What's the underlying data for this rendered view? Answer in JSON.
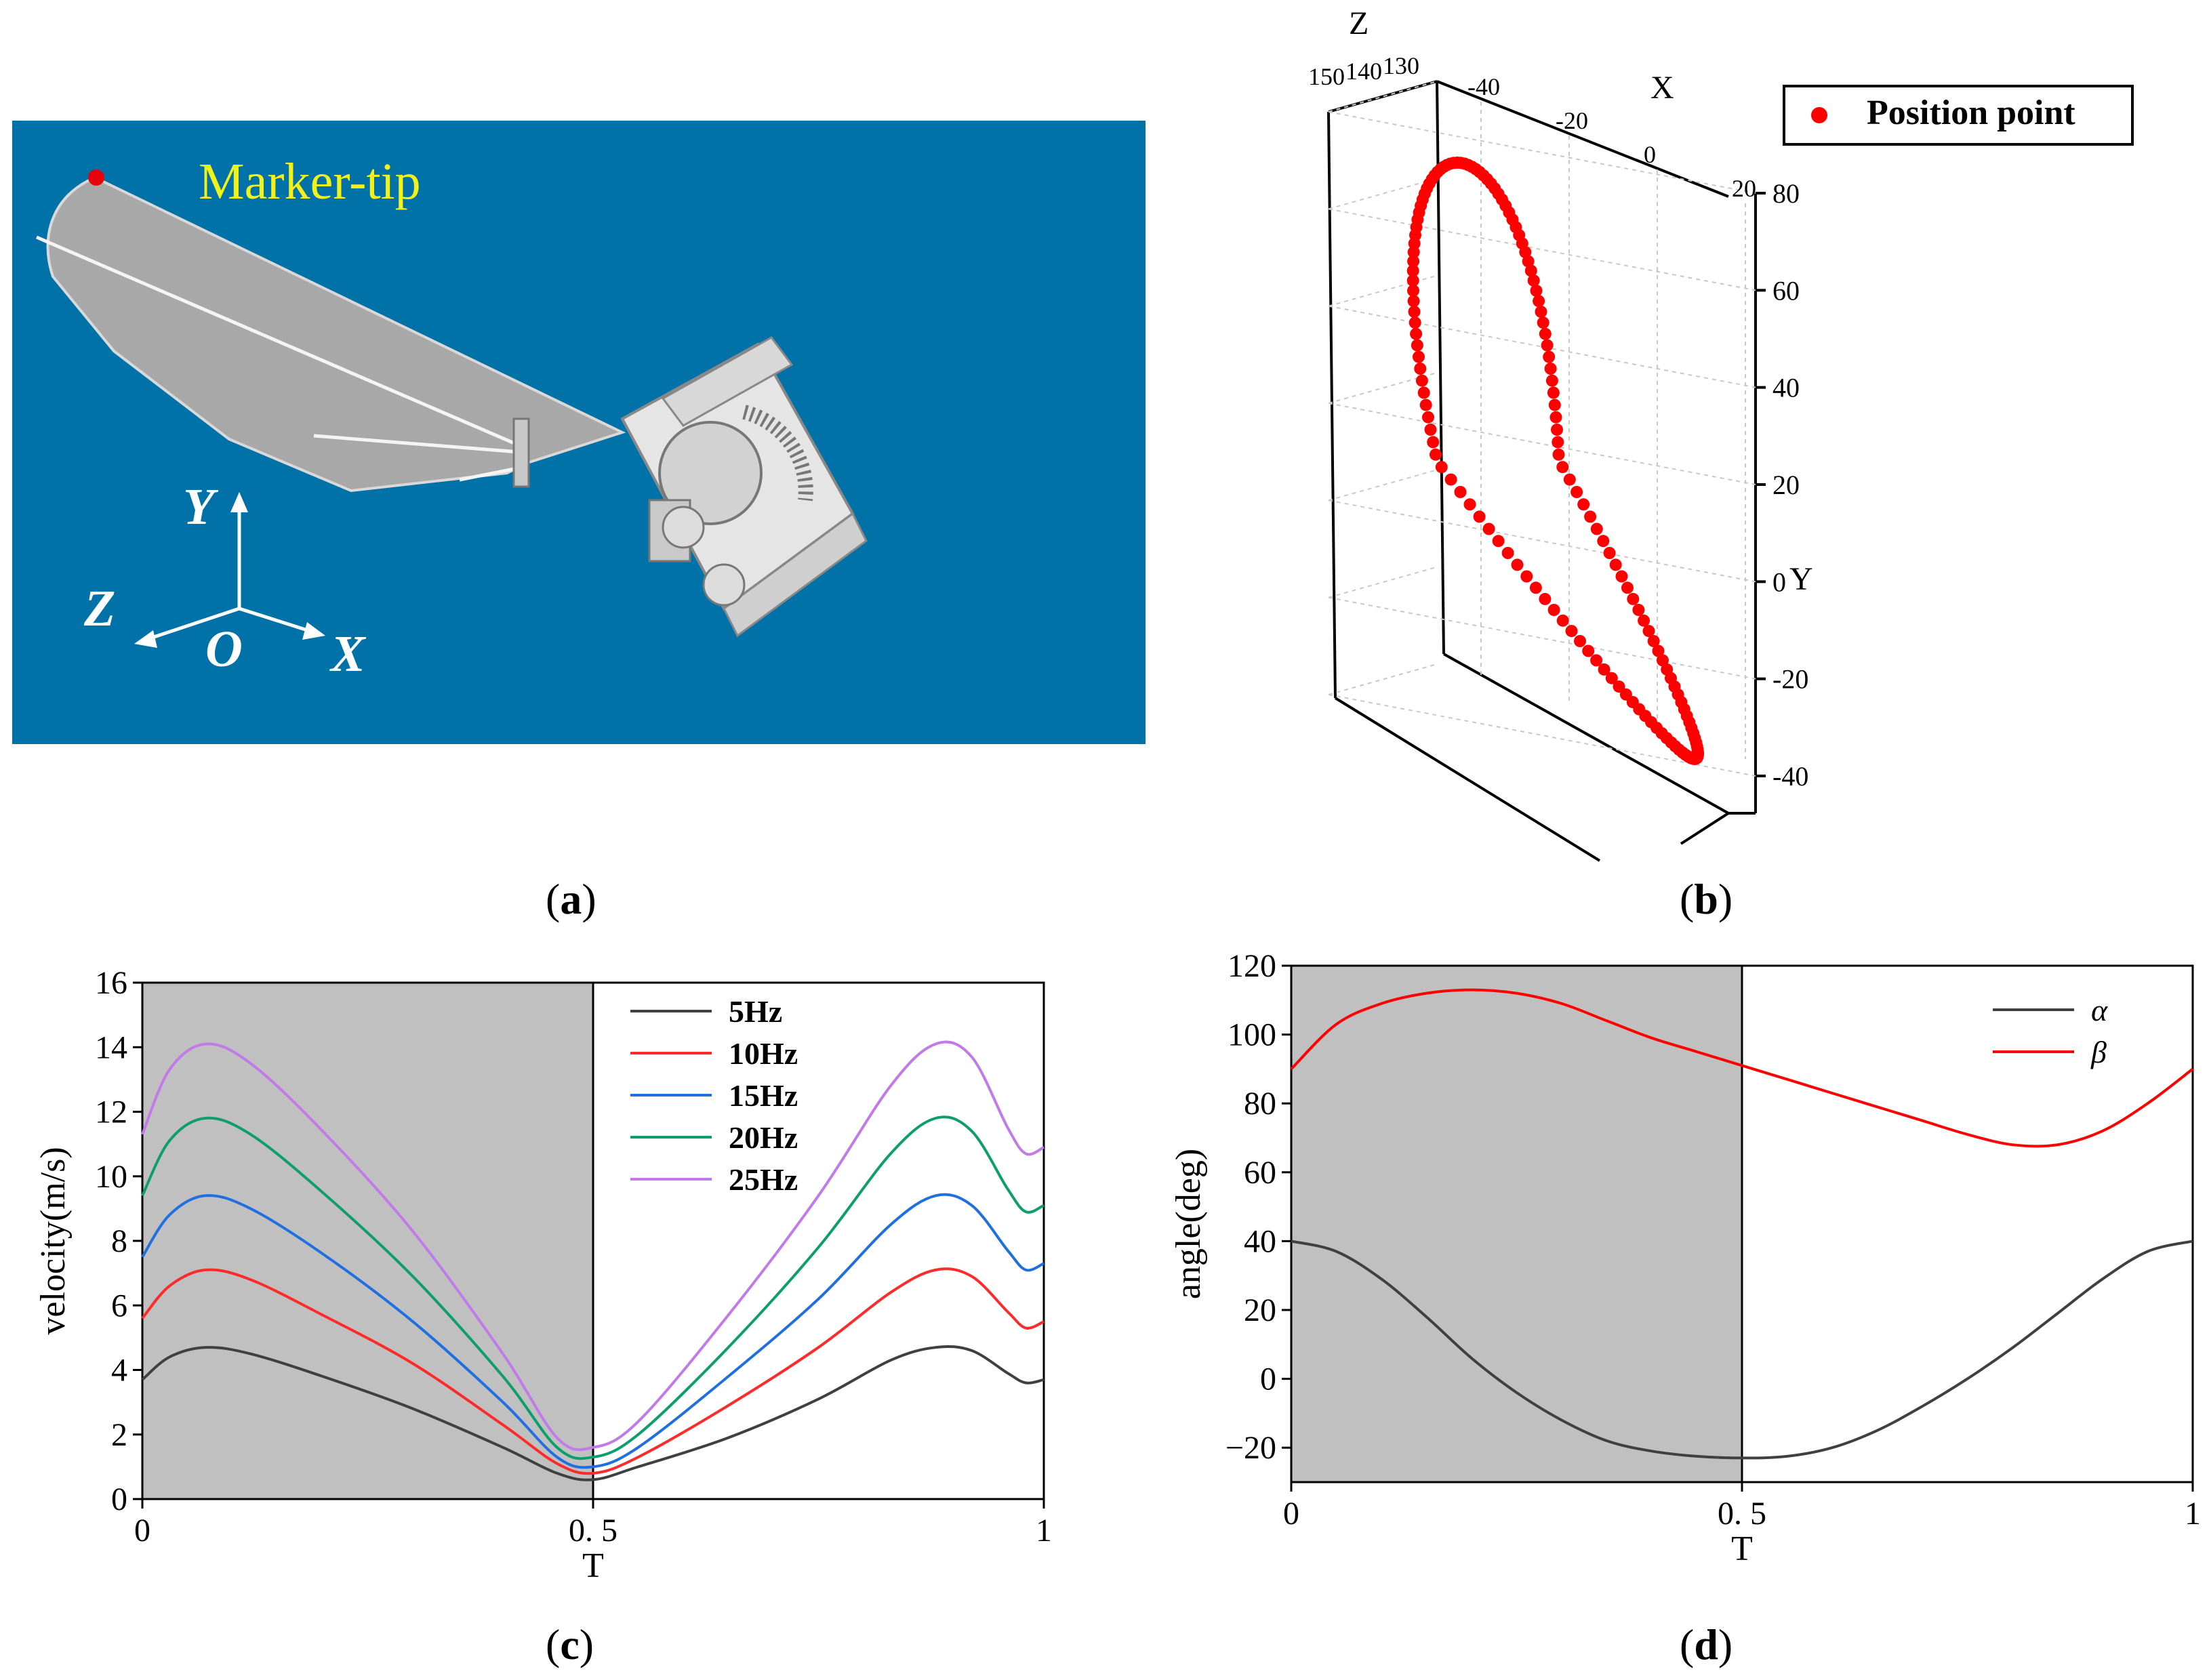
{
  "panel_a": {
    "marker_label": "Marker-tip",
    "axis_y": "Y",
    "axis_z": "Z",
    "axis_x": "X",
    "origin": "O",
    "colors": {
      "background": "#0172a8",
      "marker_label": "#f2f21a",
      "marker_dot": "#e8000b"
    },
    "caption": "a"
  },
  "panel_b": {
    "caption": "b",
    "legend_label": "Position point",
    "axis_z": "Z",
    "axis_x": "X",
    "axis_y": "Y",
    "z_ticks": [
      "150",
      "140",
      "130"
    ],
    "x_ticks": [
      "-40",
      "-20",
      "0",
      "20"
    ],
    "y_ticks": [
      "80",
      "60",
      "40",
      "20",
      "0",
      "-20",
      "-40"
    ],
    "colors": {
      "points": "#ff0000"
    }
  },
  "panel_c": {
    "caption": "c"
  },
  "panel_d": {
    "caption": "d"
  },
  "chart_data": [
    {
      "type": "line",
      "panel": "c",
      "xlabel": "T",
      "ylabel": "velocity(m/s)",
      "xlim": [
        0,
        1
      ],
      "ylim": [
        0,
        16
      ],
      "xticks": [
        "0",
        "0. 5",
        "1"
      ],
      "yticks": [
        "0",
        "2",
        "4",
        "6",
        "8",
        "10",
        "12",
        "14",
        "16"
      ],
      "shaded_region": [
        0,
        0.5
      ],
      "legend": "top-center",
      "x": [
        0,
        0.03,
        0.07,
        0.12,
        0.2,
        0.3,
        0.4,
        0.46,
        0.5,
        0.55,
        0.65,
        0.75,
        0.83,
        0.88,
        0.92,
        0.96,
        0.98,
        1.0
      ],
      "series": [
        {
          "name": "5Hz",
          "color": "#404040",
          "values": [
            3.7,
            4.4,
            4.7,
            4.5,
            3.8,
            2.8,
            1.6,
            0.8,
            0.6,
            1.0,
            1.9,
            3.1,
            4.3,
            4.7,
            4.6,
            3.9,
            3.6,
            3.7
          ]
        },
        {
          "name": "10Hz",
          "color": "#ff2a2a",
          "values": [
            5.6,
            6.6,
            7.1,
            6.8,
            5.7,
            4.2,
            2.3,
            1.1,
            0.8,
            1.3,
            2.9,
            4.7,
            6.4,
            7.1,
            6.9,
            5.8,
            5.3,
            5.5
          ]
        },
        {
          "name": "15Hz",
          "color": "#1f6fe0",
          "values": [
            7.5,
            8.8,
            9.4,
            9.0,
            7.6,
            5.5,
            3.0,
            1.3,
            1.0,
            1.6,
            3.8,
            6.2,
            8.5,
            9.4,
            9.1,
            7.7,
            7.1,
            7.3
          ]
        },
        {
          "name": "20Hz",
          "color": "#0e9e6b",
          "values": [
            9.4,
            11.1,
            11.8,
            11.3,
            9.5,
            6.9,
            3.8,
            1.6,
            1.3,
            2.0,
            4.7,
            7.8,
            10.7,
            11.8,
            11.4,
            9.6,
            8.9,
            9.1
          ]
        },
        {
          "name": "25Hz",
          "color": "#c17ae8",
          "values": [
            11.3,
            13.3,
            14.1,
            13.5,
            11.4,
            8.3,
            4.5,
            1.9,
            1.6,
            2.4,
            5.7,
            9.4,
            12.8,
            14.1,
            13.7,
            11.5,
            10.7,
            10.9
          ]
        }
      ]
    },
    {
      "type": "line",
      "panel": "d",
      "xlabel": "T",
      "ylabel": "angle(deg)",
      "xlim": [
        0,
        1
      ],
      "ylim": [
        -30,
        120
      ],
      "xticks": [
        "0",
        "0. 5",
        "1"
      ],
      "yticks": [
        "-20",
        "0",
        "20",
        "40",
        "60",
        "80",
        "100",
        "120"
      ],
      "shaded_region": [
        0,
        0.5
      ],
      "legend": "top-right",
      "x": [
        0,
        0.05,
        0.1,
        0.15,
        0.2,
        0.25,
        0.3,
        0.35,
        0.4,
        0.45,
        0.5,
        0.55,
        0.6,
        0.65,
        0.7,
        0.75,
        0.8,
        0.85,
        0.9,
        0.95,
        1.0
      ],
      "series": [
        {
          "name": "α",
          "color": "#404040",
          "values": [
            40,
            37,
            29,
            18,
            6,
            -4,
            -12,
            -18,
            -21,
            -22.5,
            -23,
            -22.5,
            -20,
            -15,
            -8,
            0,
            9,
            19,
            29,
            37,
            40
          ]
        },
        {
          "name": "β",
          "color": "#ff0000",
          "values": [
            90,
            103,
            109,
            112,
            113,
            112,
            109,
            104,
            99,
            95,
            91,
            87,
            83,
            79,
            75,
            71,
            68,
            68,
            72,
            80,
            90
          ]
        }
      ]
    }
  ]
}
